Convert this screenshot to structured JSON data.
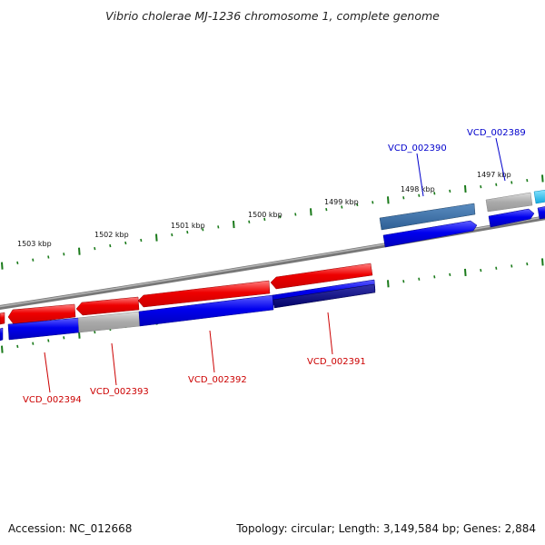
{
  "header": {
    "title": "Vibrio cholerae MJ-1236 chromosome 1, complete genome"
  },
  "footer": {
    "accession": "Accession: NC_012668",
    "summary": "Topology: circular; Length: 3,149,584 bp; Genes: 2,884"
  },
  "ruler": {
    "labels": [
      "1503 kbp",
      "1502 kbp",
      "1501 kbp",
      "1500 kbp",
      "1499 kbp",
      "1498 kbp",
      "1497 kbp"
    ]
  },
  "genes": {
    "forward_labels": [
      "VCD_002390",
      "VCD_002389"
    ],
    "reverse_labels": [
      "VCD_002394",
      "VCD_002393",
      "VCD_002392",
      "VCD_002391"
    ]
  },
  "colors": {
    "forward_label": "#0000cc",
    "reverse_label": "#cc0000",
    "tick": "#1a7a1a",
    "backbone": "#8a8a8a",
    "cds_red": "#ee0000",
    "cds_blue": "#0000ee",
    "pseudo_grey": "#a8a8a8",
    "steelblue": "#4477aa",
    "cyan": "#22bbee",
    "navy": "#000077"
  }
}
